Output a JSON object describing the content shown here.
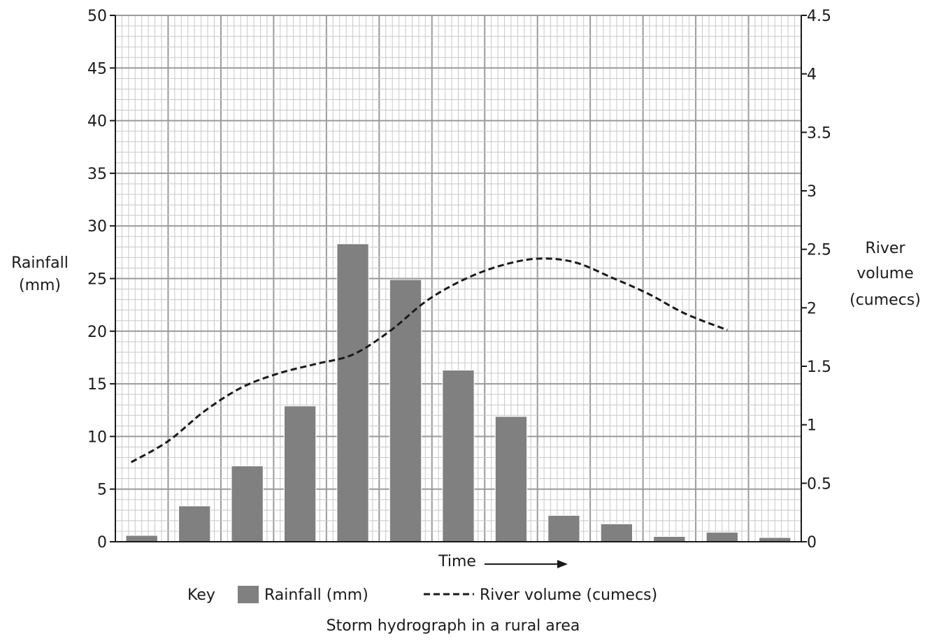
{
  "chart_data": {
    "type": "bar",
    "title": "Storm hydrograph in a rural area",
    "xlabel": "Time",
    "categories": [
      "",
      "",
      "",
      "",
      "",
      "",
      "",
      "",
      "",
      "",
      "",
      "",
      ""
    ],
    "y_left": {
      "label_lines": [
        "Rainfall",
        "(mm)"
      ],
      "ylim": [
        0,
        50
      ],
      "ticks": [
        "0",
        "5",
        "10",
        "15",
        "20",
        "25",
        "30",
        "35",
        "40",
        "45",
        "50"
      ]
    },
    "y_right": {
      "label_lines": [
        "River",
        "volume",
        "(cumecs)"
      ],
      "ylim": [
        0,
        4.5
      ],
      "ticks": [
        "0",
        "0.5",
        "1",
        "1.5",
        "2",
        "2.5",
        "3",
        "3.5",
        "4",
        "4.5"
      ]
    },
    "series": [
      {
        "name": "Rainfall (mm)",
        "type": "bar",
        "axis": "left",
        "color": "#808080",
        "values": [
          0.6,
          3.4,
          7.2,
          12.9,
          28.3,
          24.9,
          16.3,
          11.9,
          2.5,
          1.7,
          0.5,
          0.9,
          0.4
        ]
      },
      {
        "name": "River volume (cumecs)",
        "type": "line",
        "style": "dashed",
        "axis": "right",
        "color": "#1a1a1a",
        "x": [
          0.3,
          1.0,
          1.7,
          2.4,
          3.1,
          3.8,
          4.5,
          5.2,
          5.9,
          6.6,
          7.3,
          8.0,
          8.7,
          9.4,
          10.1,
          10.8,
          11.6
        ],
        "values": [
          0.68,
          0.86,
          1.12,
          1.32,
          1.44,
          1.52,
          1.6,
          1.8,
          2.06,
          2.24,
          2.36,
          2.42,
          2.39,
          2.26,
          2.12,
          1.95,
          1.81
        ]
      }
    ],
    "grid": true,
    "legend": {
      "title": "Key",
      "placement": "bottom"
    }
  }
}
